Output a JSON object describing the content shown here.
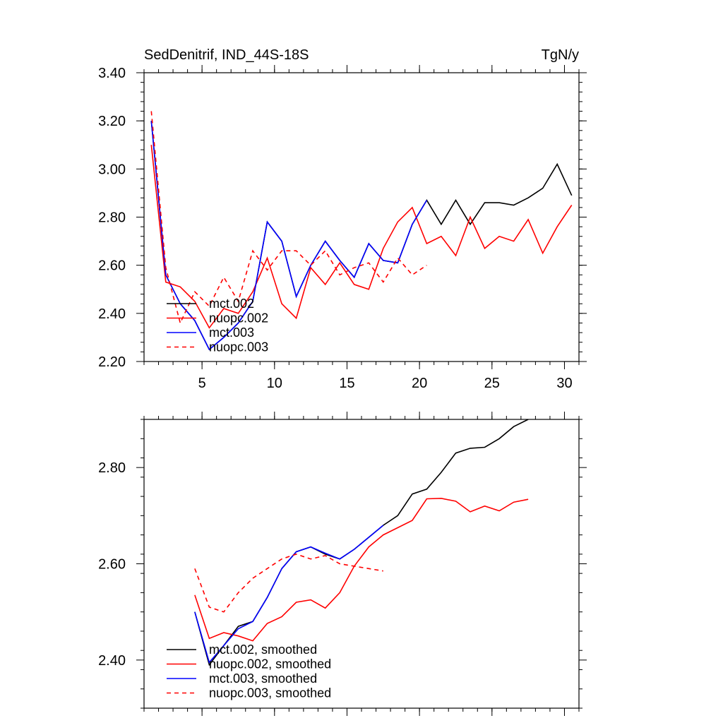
{
  "chart_data": [
    {
      "type": "line",
      "title": "SedDenitrif, IND_44S-18S",
      "units": "TgN/y",
      "xlim": [
        1,
        31
      ],
      "ylim": [
        2.2,
        3.4
      ],
      "xticks": [
        5,
        10,
        15,
        20,
        25,
        30
      ],
      "xtick_labels": [
        "5",
        "10",
        "15",
        "20",
        "25",
        "30"
      ],
      "yticks": [
        2.2,
        2.4,
        2.6,
        2.8,
        3.0,
        3.2,
        3.4
      ],
      "ytick_labels": [
        "2.20",
        "2.40",
        "2.60",
        "2.80",
        "3.00",
        "3.20",
        "3.40"
      ],
      "legend_position": "bottom-left",
      "series": [
        {
          "name": "mct.002",
          "color": "#000000",
          "dash": "solid",
          "x": [
            1.5,
            2.5,
            3.5,
            4.5,
            5.5,
            6.5,
            7.5,
            8.5,
            9.5,
            10.5,
            11.5,
            12.5,
            13.5,
            14.5,
            15.5,
            16.5,
            17.5,
            18.5,
            19.5,
            20.5,
            21.5,
            22.5,
            23.5,
            24.5,
            25.5,
            26.5,
            27.5,
            28.5,
            29.5,
            30.5
          ],
          "values": [
            3.2,
            2.56,
            2.44,
            2.37,
            2.25,
            2.3,
            2.36,
            2.45,
            2.78,
            2.7,
            2.47,
            2.6,
            2.7,
            2.62,
            2.55,
            2.69,
            2.62,
            2.61,
            2.77,
            2.87,
            2.77,
            2.87,
            2.77,
            2.86,
            2.86,
            2.85,
            2.88,
            2.92,
            3.02,
            2.89
          ]
        },
        {
          "name": "nuopc.002",
          "color": "#ff0000",
          "dash": "solid",
          "x": [
            1.5,
            2.5,
            3.5,
            4.5,
            5.5,
            6.5,
            7.5,
            8.5,
            9.5,
            10.5,
            11.5,
            12.5,
            13.5,
            14.5,
            15.5,
            16.5,
            17.5,
            18.5,
            19.5,
            20.5,
            21.5,
            22.5,
            23.5,
            24.5,
            25.5,
            26.5,
            27.5,
            28.5,
            29.5,
            30.5
          ],
          "values": [
            3.1,
            2.53,
            2.51,
            2.45,
            2.34,
            2.42,
            2.4,
            2.49,
            2.63,
            2.44,
            2.38,
            2.59,
            2.52,
            2.61,
            2.52,
            2.5,
            2.67,
            2.78,
            2.84,
            2.69,
            2.72,
            2.64,
            2.8,
            2.67,
            2.72,
            2.7,
            2.79,
            2.65,
            2.76,
            2.85
          ]
        },
        {
          "name": "mct.003",
          "color": "#0000ff",
          "dash": "solid",
          "x": [
            1.5,
            2.5,
            3.5,
            4.5,
            5.5,
            6.5,
            7.5,
            8.5,
            9.5,
            10.5,
            11.5,
            12.5,
            13.5,
            14.5,
            15.5,
            16.5,
            17.5,
            18.5,
            19.5,
            20.5
          ],
          "values": [
            3.2,
            2.56,
            2.44,
            2.37,
            2.25,
            2.3,
            2.36,
            2.45,
            2.78,
            2.7,
            2.47,
            2.6,
            2.7,
            2.62,
            2.55,
            2.69,
            2.62,
            2.61,
            2.77,
            2.87
          ]
        },
        {
          "name": "nuopc.003",
          "color": "#ff0000",
          "dash": "dashed",
          "x": [
            1.5,
            2.5,
            3.5,
            4.5,
            5.5,
            6.5,
            7.5,
            8.5,
            9.5,
            10.5,
            11.5,
            12.5,
            13.5,
            14.5,
            15.5,
            16.5,
            17.5,
            18.5,
            19.5,
            20.5
          ],
          "values": [
            3.24,
            2.59,
            2.36,
            2.49,
            2.43,
            2.55,
            2.45,
            2.66,
            2.58,
            2.66,
            2.66,
            2.6,
            2.66,
            2.56,
            2.59,
            2.61,
            2.53,
            2.63,
            2.56,
            2.6
          ]
        }
      ]
    },
    {
      "type": "line",
      "title": "",
      "xlim": [
        1,
        31
      ],
      "ylim": [
        2.3,
        2.9
      ],
      "xticks": [
        5,
        10,
        15,
        20,
        25,
        30
      ],
      "yticks": [
        2.4,
        2.6,
        2.8
      ],
      "ytick_labels": [
        "2.40",
        "2.60",
        "2.80"
      ],
      "legend_position": "bottom-left",
      "series": [
        {
          "name": "mct.002, smoothed",
          "color": "#000000",
          "dash": "solid",
          "x": [
            4.5,
            5.5,
            6.5,
            7.5,
            8.5,
            9.5,
            10.5,
            11.5,
            12.5,
            13.5,
            14.5,
            15.5,
            16.5,
            17.5,
            18.5,
            19.5,
            20.5,
            21.5,
            22.5,
            23.5,
            24.5,
            25.5,
            26.5,
            27.5
          ],
          "values": [
            2.5,
            2.39,
            2.43,
            2.47,
            2.48,
            2.53,
            2.59,
            2.625,
            2.635,
            2.62,
            2.61,
            2.63,
            2.655,
            2.68,
            2.7,
            2.745,
            2.755,
            2.79,
            2.83,
            2.84,
            2.842,
            2.86,
            2.885,
            2.9
          ]
        },
        {
          "name": "nuopc.002, smoothed",
          "color": "#ff0000",
          "dash": "solid",
          "x": [
            4.5,
            5.5,
            6.5,
            7.5,
            8.5,
            9.5,
            10.5,
            11.5,
            12.5,
            13.5,
            14.5,
            15.5,
            16.5,
            17.5,
            18.5,
            19.5,
            20.5,
            21.5,
            22.5,
            23.5,
            24.5,
            25.5,
            26.5,
            27.5
          ],
          "values": [
            2.535,
            2.445,
            2.457,
            2.45,
            2.44,
            2.476,
            2.49,
            2.52,
            2.525,
            2.508,
            2.54,
            2.595,
            2.635,
            2.66,
            2.675,
            2.69,
            2.735,
            2.736,
            2.73,
            2.708,
            2.72,
            2.71,
            2.728,
            2.734
          ]
        },
        {
          "name": "mct.003, smoothed",
          "color": "#0000ff",
          "dash": "solid",
          "x": [
            4.5,
            5.5,
            6.5,
            7.5,
            8.5,
            9.5,
            10.5,
            11.5,
            12.5,
            13.5,
            14.5,
            15.5,
            16.5,
            17.5
          ],
          "values": [
            2.5,
            2.395,
            2.43,
            2.465,
            2.48,
            2.53,
            2.59,
            2.625,
            2.635,
            2.622,
            2.61,
            2.63,
            2.655,
            2.68
          ]
        },
        {
          "name": "nuopc.003, smoothed",
          "color": "#ff0000",
          "dash": "dashed",
          "x": [
            4.5,
            5.5,
            6.5,
            7.5,
            8.5,
            9.5,
            10.5,
            11.5,
            12.5,
            13.5,
            14.5,
            15.5,
            16.5,
            17.5
          ],
          "values": [
            2.59,
            2.51,
            2.5,
            2.54,
            2.57,
            2.59,
            2.61,
            2.62,
            2.61,
            2.617,
            2.6,
            2.595,
            2.59,
            2.585
          ]
        }
      ]
    }
  ]
}
